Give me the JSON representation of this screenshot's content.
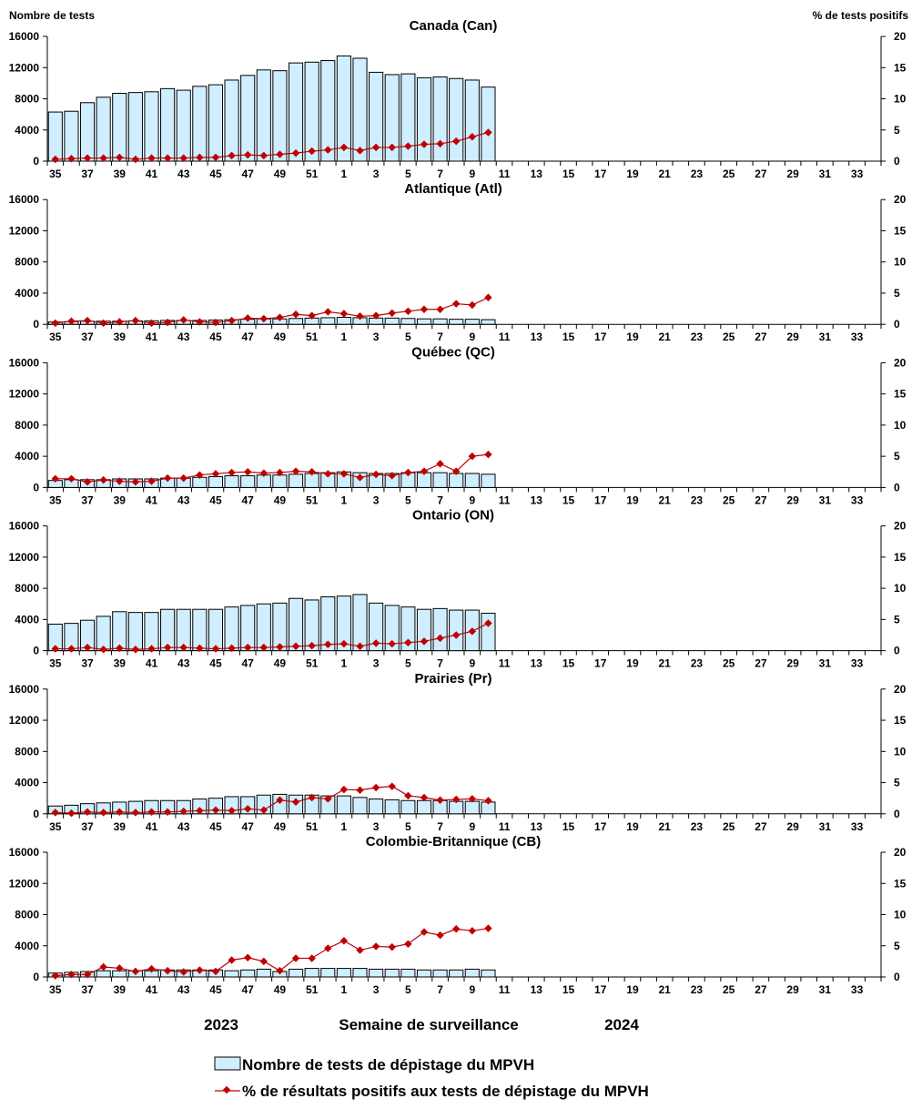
{
  "left_axis_title": "Nombre de tests",
  "right_axis_title": "% de tests positifs",
  "x_axis_title": "Semaine de surveillance",
  "year_labels": [
    "2023",
    "2024"
  ],
  "legend": {
    "bars": "Nombre de tests de dépistage du MPVH",
    "line": "% de résultats positifs aux tests de dépistage du MPVH"
  },
  "colors": {
    "bar_fill": "#cfeeff",
    "line": "#c00000"
  },
  "chart_data": [
    {
      "type": "bar+line",
      "title": "Canada (Can)",
      "weeks": [
        "35",
        "36",
        "37",
        "38",
        "39",
        "40",
        "41",
        "42",
        "43",
        "44",
        "45",
        "46",
        "47",
        "48",
        "49",
        "50",
        "51",
        "52",
        "1",
        "2",
        "3",
        "4",
        "5",
        "6",
        "7",
        "8",
        "9",
        "10",
        "11",
        "12",
        "13",
        "14",
        "15",
        "16",
        "17",
        "18",
        "19",
        "20",
        "21",
        "22",
        "23",
        "24",
        "25",
        "26",
        "27",
        "28",
        "29",
        "30",
        "31",
        "32",
        "33",
        "34"
      ],
      "x_tick_labels": [
        "35",
        "37",
        "39",
        "41",
        "43",
        "45",
        "47",
        "49",
        "51",
        "1",
        "3",
        "5",
        "7",
        "9",
        "11",
        "13",
        "15",
        "17",
        "19",
        "21",
        "23",
        "25",
        "27",
        "29",
        "31",
        "33"
      ],
      "left_ylim": [
        0,
        16000
      ],
      "left_ticks": [
        "0",
        "4000",
        "8000",
        "12000",
        "16000"
      ],
      "right_ylim": [
        0,
        20
      ],
      "right_ticks": [
        "0",
        "5",
        "10",
        "15",
        "20"
      ],
      "tests": [
        6300,
        6400,
        7500,
        8200,
        8700,
        8800,
        8900,
        9300,
        9100,
        9600,
        9800,
        10400,
        11000,
        11700,
        11600,
        12600,
        12700,
        12900,
        13500,
        13200,
        11400,
        11100,
        11200,
        10700,
        10800,
        10600,
        10400,
        9500
      ],
      "pct_positive": [
        0.3,
        0.4,
        0.5,
        0.5,
        0.6,
        0.3,
        0.5,
        0.5,
        0.5,
        0.6,
        0.6,
        0.9,
        1.0,
        0.9,
        1.1,
        1.3,
        1.6,
        1.8,
        2.2,
        1.7,
        2.2,
        2.2,
        2.4,
        2.7,
        2.8,
        3.2,
        3.9,
        4.6
      ]
    },
    {
      "type": "bar+line",
      "title": "Atlantique (Atl)",
      "weeks": [
        "35",
        "36",
        "37",
        "38",
        "39",
        "40",
        "41",
        "42",
        "43",
        "44",
        "45",
        "46",
        "47",
        "48",
        "49",
        "50",
        "51",
        "52",
        "1",
        "2",
        "3",
        "4",
        "5",
        "6",
        "7",
        "8",
        "9",
        "10",
        "11",
        "12",
        "13",
        "14",
        "15",
        "16",
        "17",
        "18",
        "19",
        "20",
        "21",
        "22",
        "23",
        "24",
        "25",
        "26",
        "27",
        "28",
        "29",
        "30",
        "31",
        "32",
        "33",
        "34"
      ],
      "x_tick_labels": [
        "35",
        "37",
        "39",
        "41",
        "43",
        "45",
        "47",
        "49",
        "51",
        "1",
        "3",
        "5",
        "7",
        "9",
        "11",
        "13",
        "15",
        "17",
        "19",
        "21",
        "23",
        "25",
        "27",
        "29",
        "31",
        "33"
      ],
      "left_ylim": [
        0,
        16000
      ],
      "left_ticks": [
        "0",
        "4000",
        "8000",
        "12000",
        "16000"
      ],
      "right_ylim": [
        0,
        20
      ],
      "right_ticks": [
        "0",
        "5",
        "10",
        "15",
        "20"
      ],
      "tests": [
        300,
        350,
        400,
        400,
        400,
        450,
        450,
        500,
        500,
        500,
        550,
        600,
        650,
        700,
        700,
        750,
        800,
        850,
        900,
        850,
        800,
        800,
        750,
        700,
        700,
        650,
        650,
        600
      ],
      "pct_positive": [
        0.2,
        0.5,
        0.6,
        0.2,
        0.4,
        0.6,
        0.2,
        0.3,
        0.7,
        0.4,
        0.3,
        0.6,
        1.0,
        0.9,
        1.1,
        1.6,
        1.4,
        2.0,
        1.7,
        1.3,
        1.4,
        1.8,
        2.1,
        2.4,
        2.4,
        3.3,
        3.1,
        4.3
      ]
    },
    {
      "type": "bar+line",
      "title": "Québec (QC)",
      "weeks": [
        "35",
        "36",
        "37",
        "38",
        "39",
        "40",
        "41",
        "42",
        "43",
        "44",
        "45",
        "46",
        "47",
        "48",
        "49",
        "50",
        "51",
        "52",
        "1",
        "2",
        "3",
        "4",
        "5",
        "6",
        "7",
        "8",
        "9",
        "10",
        "11",
        "12",
        "13",
        "14",
        "15",
        "16",
        "17",
        "18",
        "19",
        "20",
        "21",
        "22",
        "23",
        "24",
        "25",
        "26",
        "27",
        "28",
        "29",
        "30",
        "31",
        "32",
        "33",
        "34"
      ],
      "x_tick_labels": [
        "35",
        "37",
        "39",
        "41",
        "43",
        "45",
        "47",
        "49",
        "51",
        "1",
        "3",
        "5",
        "7",
        "9",
        "11",
        "13",
        "15",
        "17",
        "19",
        "21",
        "23",
        "25",
        "27",
        "29",
        "31",
        "33"
      ],
      "left_ylim": [
        0,
        16000
      ],
      "left_ticks": [
        "0",
        "4000",
        "8000",
        "12000",
        "16000"
      ],
      "right_ylim": [
        0,
        20
      ],
      "right_ticks": [
        "0",
        "5",
        "10",
        "15",
        "20"
      ],
      "tests": [
        900,
        1000,
        1000,
        1000,
        1100,
        1100,
        1100,
        1200,
        1200,
        1300,
        1400,
        1500,
        1500,
        1600,
        1600,
        1700,
        1800,
        1900,
        2000,
        1900,
        1800,
        1800,
        1900,
        1900,
        1900,
        1800,
        1800,
        1700
      ],
      "pct_positive": [
        1.4,
        1.4,
        0.9,
        1.2,
        1.0,
        0.9,
        1.0,
        1.5,
        1.5,
        2.0,
        2.2,
        2.4,
        2.5,
        2.3,
        2.4,
        2.6,
        2.5,
        2.2,
        2.2,
        1.6,
        2.1,
        1.9,
        2.4,
        2.6,
        3.8,
        2.6,
        5.0,
        5.3
      ]
    },
    {
      "type": "bar+line",
      "title": "Ontario (ON)",
      "weeks": [
        "35",
        "36",
        "37",
        "38",
        "39",
        "40",
        "41",
        "42",
        "43",
        "44",
        "45",
        "46",
        "47",
        "48",
        "49",
        "50",
        "51",
        "52",
        "1",
        "2",
        "3",
        "4",
        "5",
        "6",
        "7",
        "8",
        "9",
        "10",
        "11",
        "12",
        "13",
        "14",
        "15",
        "16",
        "17",
        "18",
        "19",
        "20",
        "21",
        "22",
        "23",
        "24",
        "25",
        "26",
        "27",
        "28",
        "29",
        "30",
        "31",
        "32",
        "33",
        "34"
      ],
      "x_tick_labels": [
        "35",
        "37",
        "39",
        "41",
        "43",
        "45",
        "47",
        "49",
        "51",
        "1",
        "3",
        "5",
        "7",
        "9",
        "11",
        "13",
        "15",
        "17",
        "19",
        "21",
        "23",
        "25",
        "27",
        "29",
        "31",
        "33"
      ],
      "left_ylim": [
        0,
        16000
      ],
      "left_ticks": [
        "0",
        "4000",
        "8000",
        "12000",
        "16000"
      ],
      "right_ylim": [
        0,
        20
      ],
      "right_ticks": [
        "0",
        "5",
        "10",
        "15",
        "20"
      ],
      "tests": [
        3400,
        3500,
        3900,
        4400,
        5000,
        4900,
        4900,
        5300,
        5300,
        5300,
        5300,
        5600,
        5800,
        6000,
        6100,
        6700,
        6500,
        6900,
        7000,
        7200,
        6100,
        5800,
        5600,
        5300,
        5400,
        5200,
        5200,
        4800
      ],
      "pct_positive": [
        0.3,
        0.3,
        0.5,
        0.2,
        0.4,
        0.2,
        0.3,
        0.5,
        0.5,
        0.4,
        0.3,
        0.4,
        0.5,
        0.5,
        0.6,
        0.7,
        0.8,
        1.0,
        1.1,
        0.7,
        1.2,
        1.1,
        1.3,
        1.5,
        2.0,
        2.5,
        3.1,
        4.4
      ]
    },
    {
      "type": "bar+line",
      "title": "Prairies (Pr)",
      "weeks": [
        "35",
        "36",
        "37",
        "38",
        "39",
        "40",
        "41",
        "42",
        "43",
        "44",
        "45",
        "46",
        "47",
        "48",
        "49",
        "50",
        "51",
        "52",
        "1",
        "2",
        "3",
        "4",
        "5",
        "6",
        "7",
        "8",
        "9",
        "10",
        "11",
        "12",
        "13",
        "14",
        "15",
        "16",
        "17",
        "18",
        "19",
        "20",
        "21",
        "22",
        "23",
        "24",
        "25",
        "26",
        "27",
        "28",
        "29",
        "30",
        "31",
        "32",
        "33",
        "34"
      ],
      "x_tick_labels": [
        "35",
        "37",
        "39",
        "41",
        "43",
        "45",
        "47",
        "49",
        "51",
        "1",
        "3",
        "5",
        "7",
        "9",
        "11",
        "13",
        "15",
        "17",
        "19",
        "21",
        "23",
        "25",
        "27",
        "29",
        "31",
        "33"
      ],
      "left_ylim": [
        0,
        16000
      ],
      "left_ticks": [
        "0",
        "4000",
        "8000",
        "12000",
        "16000"
      ],
      "right_ylim": [
        0,
        20
      ],
      "right_ticks": [
        "0",
        "5",
        "10",
        "15",
        "20"
      ],
      "tests": [
        1000,
        1100,
        1300,
        1400,
        1500,
        1600,
        1700,
        1700,
        1700,
        1900,
        2000,
        2200,
        2200,
        2400,
        2500,
        2400,
        2400,
        2300,
        2300,
        2100,
        1900,
        1800,
        1700,
        1700,
        1700,
        1600,
        1600,
        1500
      ],
      "pct_positive": [
        0.2,
        0.1,
        0.3,
        0.2,
        0.3,
        0.2,
        0.3,
        0.3,
        0.4,
        0.5,
        0.6,
        0.5,
        0.8,
        0.6,
        2.2,
        1.9,
        2.6,
        2.4,
        3.9,
        3.8,
        4.2,
        4.4,
        2.9,
        2.6,
        2.2,
        2.3,
        2.4,
        2.1
      ]
    },
    {
      "type": "bar+line",
      "title": "Colombie-Britannique (CB)",
      "weeks": [
        "35",
        "36",
        "37",
        "38",
        "39",
        "40",
        "41",
        "42",
        "43",
        "44",
        "45",
        "46",
        "47",
        "48",
        "49",
        "50",
        "51",
        "52",
        "1",
        "2",
        "3",
        "4",
        "5",
        "6",
        "7",
        "8",
        "9",
        "10",
        "11",
        "12",
        "13",
        "14",
        "15",
        "16",
        "17",
        "18",
        "19",
        "20",
        "21",
        "22",
        "23",
        "24",
        "25",
        "26",
        "27",
        "28",
        "29",
        "30",
        "31",
        "32",
        "33",
        "34"
      ],
      "x_tick_labels": [
        "35",
        "37",
        "39",
        "41",
        "43",
        "45",
        "47",
        "49",
        "51",
        "1",
        "3",
        "5",
        "7",
        "9",
        "11",
        "13",
        "15",
        "17",
        "19",
        "21",
        "23",
        "25",
        "27",
        "29",
        "31",
        "33"
      ],
      "left_ylim": [
        0,
        16000
      ],
      "left_ticks": [
        "0",
        "4000",
        "8000",
        "12000",
        "16000"
      ],
      "right_ylim": [
        0,
        20
      ],
      "right_ticks": [
        "0",
        "5",
        "10",
        "15",
        "20"
      ],
      "tests": [
        500,
        600,
        700,
        800,
        800,
        800,
        800,
        900,
        900,
        900,
        900,
        800,
        900,
        1000,
        700,
        1000,
        1100,
        1100,
        1100,
        1100,
        1000,
        1000,
        1000,
        900,
        900,
        900,
        1000,
        900
      ],
      "pct_positive": [
        0.2,
        0.4,
        0.4,
        1.6,
        1.4,
        0.9,
        1.3,
        1.0,
        0.8,
        1.1,
        0.9,
        2.7,
        3.1,
        2.5,
        1.0,
        3.0,
        3.0,
        4.6,
        5.8,
        4.3,
        4.9,
        4.8,
        5.3,
        7.2,
        6.7,
        7.7,
        7.4,
        7.8
      ]
    }
  ]
}
